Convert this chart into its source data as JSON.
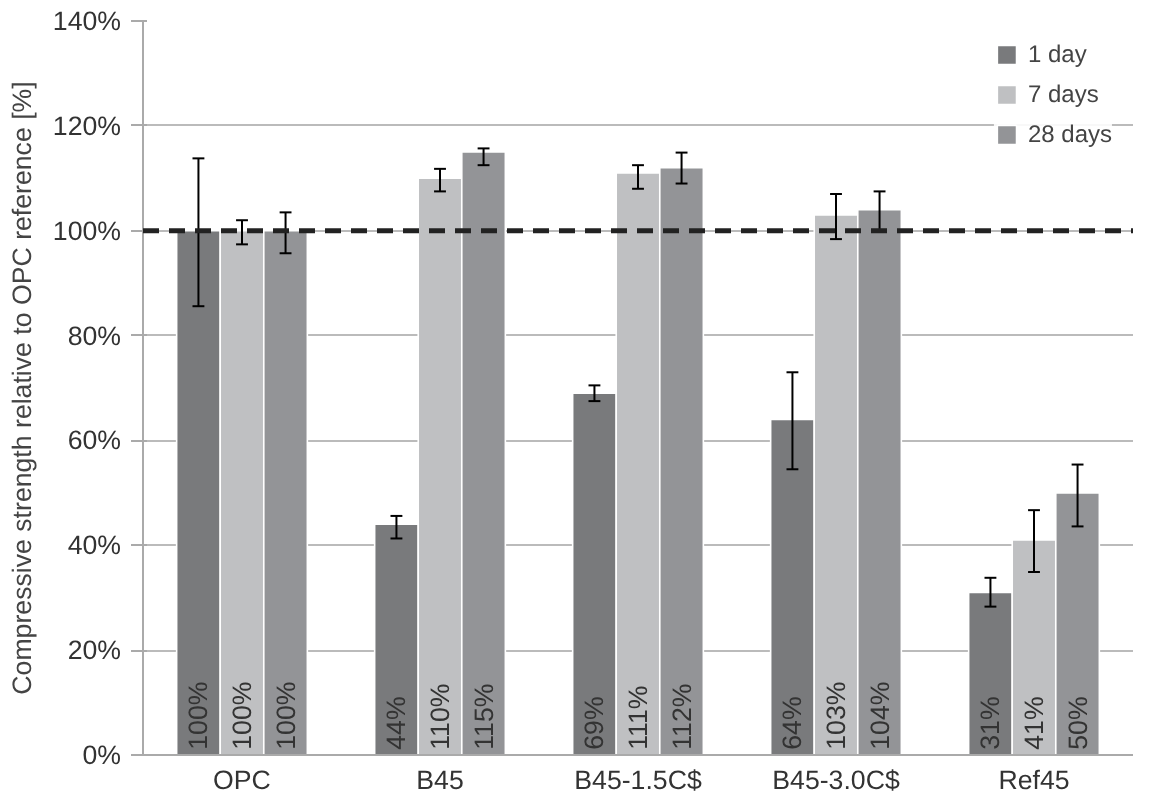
{
  "chart_data": {
    "type": "bar",
    "ylabel": "Compressive strength relative to OPC reference [%]",
    "categories": [
      "OPC",
      "B45",
      "B45-1.5C$",
      "B45-3.0C$",
      "Ref45"
    ],
    "series": [
      {
        "name": "1 day",
        "color": "#797a7c",
        "values": [
          100,
          44,
          69,
          64,
          31
        ],
        "value_labels": [
          "100%",
          "44%",
          "69%",
          "64%",
          "31%"
        ],
        "errors": [
          [
            85.6,
            113.8
          ],
          [
            41.3,
            45.6
          ],
          [
            67.5,
            70.5
          ],
          [
            54.5,
            73
          ],
          [
            28.3,
            33.8
          ]
        ]
      },
      {
        "name": "7 days",
        "color": "#bfc0c2",
        "values": [
          100,
          110,
          111,
          103,
          41
        ],
        "value_labels": [
          "100%",
          "110%",
          "111%",
          "103%",
          "41%"
        ],
        "errors": [
          [
            97.4,
            102
          ],
          [
            107.5,
            111.8
          ],
          [
            108,
            112.5
          ],
          [
            98.4,
            107
          ],
          [
            34.9,
            46.7
          ]
        ]
      },
      {
        "name": "28 days",
        "color": "#939497",
        "values": [
          100,
          115,
          112,
          104,
          50
        ],
        "value_labels": [
          "100%",
          "115%",
          "112%",
          "104%",
          "50%"
        ],
        "errors": [
          [
            95.7,
            103.5
          ],
          [
            112.5,
            115.7
          ],
          [
            109,
            114.9
          ],
          [
            100,
            107.5
          ],
          [
            43.6,
            55.4
          ]
        ]
      }
    ],
    "ylim": [
      0,
      140
    ],
    "yticks": [
      {
        "value": 0,
        "label": "0%"
      },
      {
        "value": 20,
        "label": "20%"
      },
      {
        "value": 40,
        "label": "40%"
      },
      {
        "value": 60,
        "label": "60%"
      },
      {
        "value": 80,
        "label": "80%"
      },
      {
        "value": 100,
        "label": "100%"
      },
      {
        "value": 120,
        "label": "120%"
      },
      {
        "value": 140,
        "label": "140%"
      }
    ],
    "ref_lines": [
      {
        "axis": "y",
        "value": 100,
        "color": "#222222",
        "line_style": "dashed"
      }
    ],
    "grid": "y",
    "legend": "top right"
  }
}
